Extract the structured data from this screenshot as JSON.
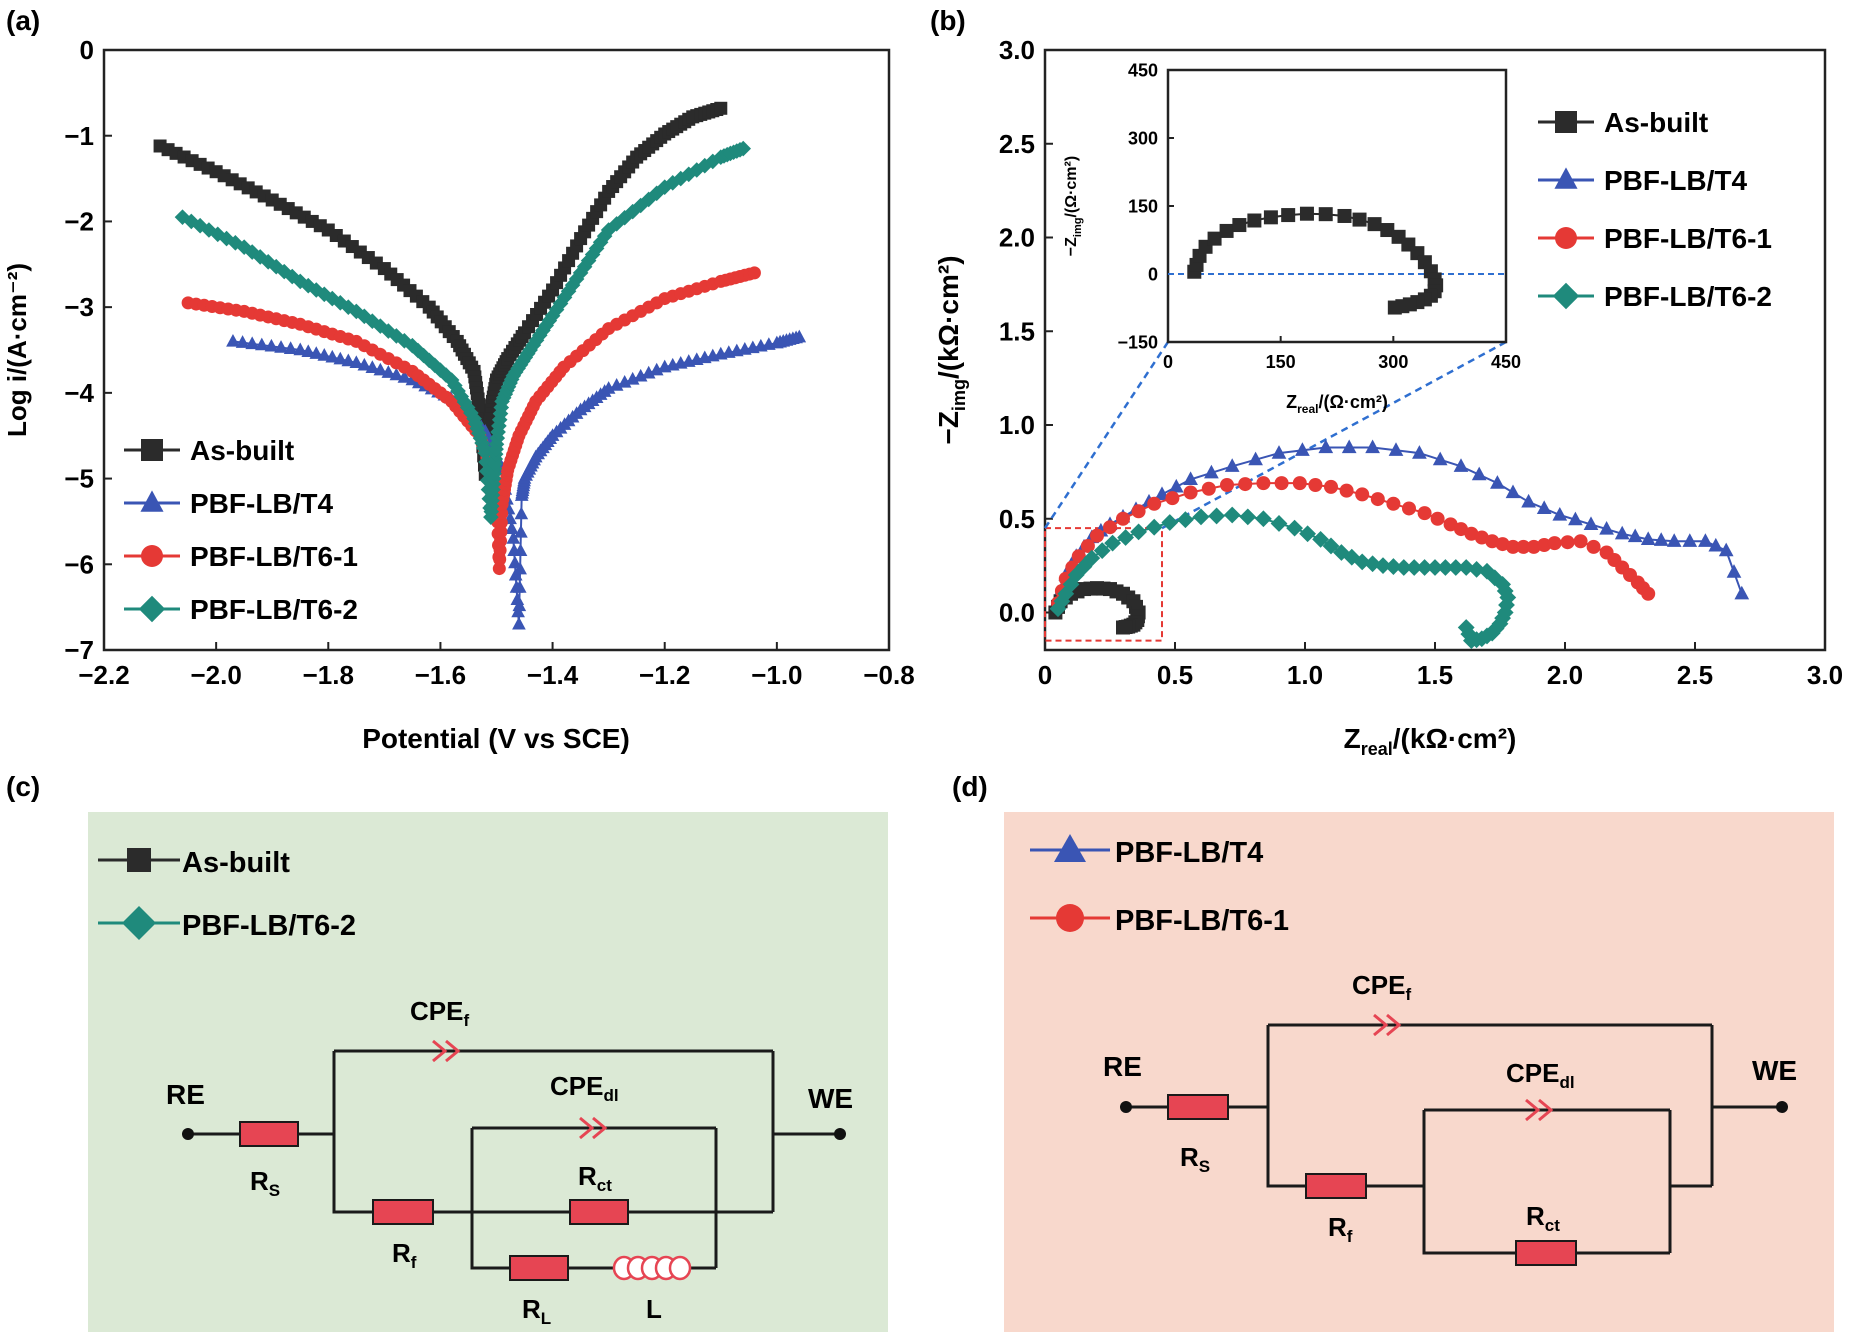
{
  "colors": {
    "as_built": "#2b2b2b",
    "t4": "#3a55b4",
    "t61": "#e53935",
    "t62": "#1f8a7c",
    "panel_c_bg": "#dbe9d5",
    "panel_d_bg": "#f8d8cc",
    "resistor": "#e64553",
    "guide": "#2f6fd0",
    "zoom_box": "#e53935"
  },
  "panel_labels": {
    "a": "(a)",
    "b": "(b)",
    "c": "(c)",
    "d": "(d)"
  },
  "chart_data": [
    {
      "id": "a",
      "type": "line",
      "title": "",
      "xlabel": "Potential (V vs SCE)",
      "ylabel": "Log i/(A·cm⁻²)",
      "xlim": [
        -2.2,
        -0.8
      ],
      "ylim": [
        -7,
        0
      ],
      "xticks": [
        -2.2,
        -2.0,
        -1.8,
        -1.6,
        -1.4,
        -1.2,
        -1.0,
        -0.8
      ],
      "xtick_labels": [
        "−2.2",
        "−2.0",
        "−1.8",
        "−1.6",
        "−1.4",
        "−1.2",
        "−1.0",
        "−0.8"
      ],
      "yticks": [
        0,
        -1,
        -2,
        -3,
        -4,
        -5,
        -6,
        -7
      ],
      "ytick_labels": [
        "0",
        "−1",
        "−2",
        "−3",
        "−4",
        "−5",
        "−6",
        "−7"
      ],
      "legend_position": "bottom-left",
      "series": [
        {
          "name": "As-built",
          "marker": "square",
          "color_key": "as_built",
          "x": [
            -2.1,
            -2.0,
            -1.9,
            -1.8,
            -1.7,
            -1.62,
            -1.57,
            -1.54,
            -1.53,
            -1.52,
            -1.51,
            -1.5,
            -1.48,
            -1.45,
            -1.4,
            -1.35,
            -1.3,
            -1.25,
            -1.2,
            -1.15,
            -1.1
          ],
          "y": [
            -1.12,
            -1.42,
            -1.75,
            -2.1,
            -2.55,
            -3.0,
            -3.4,
            -3.75,
            -4.2,
            -4.95,
            -4.2,
            -3.85,
            -3.6,
            -3.3,
            -2.8,
            -2.2,
            -1.65,
            -1.25,
            -0.98,
            -0.78,
            -0.68
          ]
        },
        {
          "name": "PBF-LB/T4",
          "marker": "triangle",
          "color_key": "t4",
          "x": [
            -1.97,
            -1.85,
            -1.75,
            -1.65,
            -1.57,
            -1.52,
            -1.49,
            -1.47,
            -1.46,
            -1.455,
            -1.45,
            -1.43,
            -1.4,
            -1.35,
            -1.3,
            -1.2,
            -1.1,
            -1.0,
            -0.96
          ],
          "y": [
            -3.4,
            -3.5,
            -3.65,
            -3.85,
            -4.1,
            -4.45,
            -4.9,
            -5.7,
            -6.7,
            -5.2,
            -5.0,
            -4.75,
            -4.5,
            -4.2,
            -3.95,
            -3.7,
            -3.55,
            -3.42,
            -3.35
          ]
        },
        {
          "name": "PBF-LB/T6-1",
          "marker": "circle",
          "color_key": "t61",
          "x": [
            -2.05,
            -1.95,
            -1.85,
            -1.75,
            -1.65,
            -1.58,
            -1.53,
            -1.5,
            -1.495,
            -1.49,
            -1.48,
            -1.46,
            -1.43,
            -1.38,
            -1.3,
            -1.2,
            -1.1,
            -1.04
          ],
          "y": [
            -2.95,
            -3.05,
            -3.2,
            -3.4,
            -3.75,
            -4.1,
            -4.5,
            -5.1,
            -6.05,
            -5.3,
            -4.9,
            -4.5,
            -4.1,
            -3.7,
            -3.25,
            -2.9,
            -2.7,
            -2.6
          ]
        },
        {
          "name": "PBF-LB/T6-2",
          "marker": "diamond",
          "color_key": "t62",
          "x": [
            -2.06,
            -1.95,
            -1.85,
            -1.75,
            -1.65,
            -1.58,
            -1.54,
            -1.52,
            -1.51,
            -1.505,
            -1.5,
            -1.49,
            -1.47,
            -1.44,
            -1.4,
            -1.35,
            -1.3,
            -1.2,
            -1.1,
            -1.06
          ],
          "y": [
            -1.95,
            -2.3,
            -2.7,
            -3.05,
            -3.45,
            -3.85,
            -4.3,
            -4.7,
            -5.45,
            -5.0,
            -4.6,
            -4.1,
            -3.8,
            -3.5,
            -3.1,
            -2.6,
            -2.1,
            -1.6,
            -1.25,
            -1.15
          ]
        }
      ]
    },
    {
      "id": "b",
      "type": "scatter",
      "title": "",
      "xlabel_main": "Z",
      "xlabel_sub": "real",
      "xlabel_tail": "/(kΩ·cm²)",
      "ylabel_main": "−Z",
      "ylabel_sub": "img",
      "ylabel_tail": "/(kΩ·cm²)",
      "xlim": [
        0,
        3.0
      ],
      "ylim": [
        -0.2,
        3.0
      ],
      "xticks": [
        0,
        0.5,
        1.0,
        1.5,
        2.0,
        2.5,
        3.0
      ],
      "xtick_labels": [
        "0",
        "0.5",
        "1.0",
        "1.5",
        "2.0",
        "2.5",
        "3.0"
      ],
      "yticks": [
        0,
        0.5,
        1.0,
        1.5,
        2.0,
        2.5,
        3.0
      ],
      "ytick_labels": [
        "0.0",
        "0.5",
        "1.0",
        "1.5",
        "2.0",
        "2.5",
        "3.0"
      ],
      "legend_position": "top-right",
      "series": [
        {
          "name": "As-built",
          "marker": "square",
          "color_key": "as_built",
          "x": [
            0.04,
            0.06,
            0.1,
            0.15,
            0.2,
            0.25,
            0.3,
            0.34,
            0.36,
            0.355,
            0.34,
            0.32,
            0.3
          ],
          "y": [
            0.0,
            0.06,
            0.1,
            0.125,
            0.13,
            0.125,
            0.1,
            0.06,
            0.0,
            -0.04,
            -0.065,
            -0.075,
            -0.08
          ]
        },
        {
          "name": "PBF-LB/T4",
          "marker": "triangle",
          "color_key": "t4",
          "x": [
            0.05,
            0.08,
            0.12,
            0.18,
            0.25,
            0.35,
            0.45,
            0.56,
            0.72,
            0.9,
            1.08,
            1.26,
            1.44,
            1.6,
            1.74,
            1.86,
            1.98,
            2.1,
            2.22,
            2.32,
            2.42,
            2.54,
            2.62,
            2.68
          ],
          "y": [
            0.05,
            0.2,
            0.3,
            0.4,
            0.47,
            0.55,
            0.63,
            0.71,
            0.78,
            0.85,
            0.88,
            0.88,
            0.85,
            0.78,
            0.69,
            0.59,
            0.52,
            0.47,
            0.42,
            0.39,
            0.38,
            0.38,
            0.33,
            0.1
          ]
        },
        {
          "name": "PBF-LB/T6-1",
          "marker": "circle",
          "color_key": "t61",
          "x": [
            0.05,
            0.08,
            0.13,
            0.2,
            0.3,
            0.42,
            0.56,
            0.7,
            0.84,
            0.98,
            1.1,
            1.22,
            1.34,
            1.46,
            1.56,
            1.64,
            1.72,
            1.8,
            1.88,
            1.96,
            2.06,
            2.16,
            2.22,
            2.28,
            2.32
          ],
          "y": [
            0.05,
            0.18,
            0.3,
            0.41,
            0.5,
            0.58,
            0.64,
            0.68,
            0.69,
            0.69,
            0.67,
            0.63,
            0.58,
            0.53,
            0.47,
            0.42,
            0.38,
            0.35,
            0.35,
            0.37,
            0.38,
            0.32,
            0.24,
            0.16,
            0.1
          ]
        },
        {
          "name": "PBF-LB/T6-2",
          "marker": "diamond",
          "color_key": "t62",
          "x": [
            0.05,
            0.08,
            0.12,
            0.18,
            0.26,
            0.36,
            0.48,
            0.6,
            0.72,
            0.84,
            0.96,
            1.06,
            1.14,
            1.22,
            1.3,
            1.38,
            1.46,
            1.54,
            1.62,
            1.7,
            1.76,
            1.78,
            1.77,
            1.75,
            1.72,
            1.68,
            1.64,
            1.62
          ],
          "y": [
            0.02,
            0.1,
            0.2,
            0.29,
            0.37,
            0.43,
            0.48,
            0.51,
            0.52,
            0.5,
            0.45,
            0.39,
            0.32,
            0.27,
            0.25,
            0.24,
            0.24,
            0.24,
            0.24,
            0.22,
            0.15,
            0.08,
            0.0,
            -0.06,
            -0.11,
            -0.14,
            -0.15,
            -0.08
          ]
        }
      ],
      "inset": {
        "xlabel_main": "Z",
        "xlabel_sub": "real",
        "xlabel_tail": "/(Ω·cm²)",
        "ylabel_main": "−Z",
        "ylabel_sub": "img",
        "ylabel_tail": "/(Ω·cm²)",
        "xlim": [
          0,
          450
        ],
        "ylim": [
          -150,
          450
        ],
        "xticks": [
          0,
          150,
          300,
          450
        ],
        "xtick_labels": [
          "0",
          "150",
          "300",
          "450"
        ],
        "yticks": [
          -150,
          0,
          150,
          300,
          450
        ],
        "ytick_labels": [
          "−150",
          "0",
          "150",
          "300",
          "450"
        ],
        "zero_line": 0,
        "series": [
          {
            "name": "As-built",
            "marker": "square",
            "color_key": "as_built",
            "x": [
              35,
              38,
              42,
              50,
              62,
              78,
              95,
              115,
              137,
              160,
              185,
              210,
              235,
              255,
              275,
              292,
              307,
              320,
              332,
              342,
              350,
              355,
              357,
              355,
              350,
              342,
              332,
              322,
              312,
              302
            ],
            "y": [
              5,
              20,
              40,
              60,
              78,
              95,
              108,
              118,
              125,
              130,
              133,
              132,
              128,
              120,
              110,
              97,
              82,
              65,
              46,
              26,
              6,
              -12,
              -25,
              -38,
              -48,
              -56,
              -62,
              -67,
              -71,
              -74
            ]
          }
        ]
      }
    }
  ],
  "panel_c": {
    "legend": [
      {
        "label": "As-built",
        "marker": "square",
        "color_key": "as_built"
      },
      {
        "label": "PBF-LB/T6-2",
        "marker": "diamond",
        "color_key": "t62"
      }
    ],
    "re": "RE",
    "we": "WE",
    "rs": "R",
    "rs_sub": "S",
    "rf": "R",
    "rf_sub": "f",
    "rct": "R",
    "rct_sub": "ct",
    "rl": "R",
    "rl_sub": "L",
    "l": "L",
    "cpef": "CPE",
    "cpef_sub": "f",
    "cpedl": "CPE",
    "cpedl_sub": "dl"
  },
  "panel_d": {
    "legend": [
      {
        "label": "PBF-LB/T4",
        "marker": "triangle",
        "color_key": "t4"
      },
      {
        "label": "PBF-LB/T6-1",
        "marker": "circle",
        "color_key": "t61"
      }
    ],
    "re": "RE",
    "we": "WE",
    "rs": "R",
    "rs_sub": "S",
    "rf": "R",
    "rf_sub": "f",
    "rct": "R",
    "rct_sub": "ct",
    "cpef": "CPE",
    "cpef_sub": "f",
    "cpedl": "CPE",
    "cpedl_sub": "dl"
  }
}
